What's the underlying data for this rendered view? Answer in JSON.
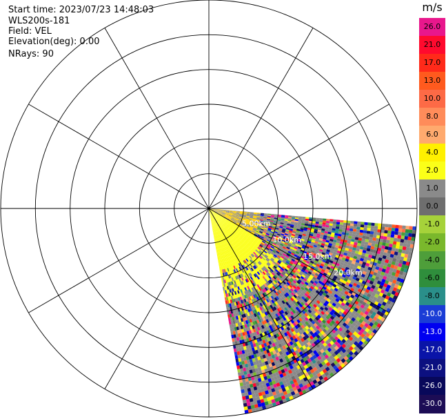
{
  "header": {
    "start_time": "Start time: 2023/07/23 14:48:03",
    "instrument": "WLS200s-181",
    "field": "Field: VEL",
    "elevation": "Elevation(deg): 0.00",
    "nrays": "NRays: 90"
  },
  "colorbar": {
    "unit": "m/s",
    "levels": [
      {
        "label": "26.0",
        "color": "#e8178c"
      },
      {
        "label": "21.0",
        "color": "#ff0a2e"
      },
      {
        "label": "17.0",
        "color": "#ff2a1a"
      },
      {
        "label": "13.0",
        "color": "#ff5a1e"
      },
      {
        "label": "10.0",
        "color": "#fd6a46"
      },
      {
        "label": "8.0",
        "color": "#ff8c5a"
      },
      {
        "label": "6.0",
        "color": "#ffaa6e"
      },
      {
        "label": "4.0",
        "color": "#fff000"
      },
      {
        "label": "2.0",
        "color": "#fbff18"
      },
      {
        "label": "1.0",
        "color": "#8a8a8a"
      },
      {
        "label": "0.0",
        "color": "#6e6e6e"
      },
      {
        "label": "-1.0",
        "color": "#a6d23a"
      },
      {
        "label": "-2.0",
        "color": "#7ab82c"
      },
      {
        "label": "-4.0",
        "color": "#4e9e3a"
      },
      {
        "label": "-6.0",
        "color": "#2f8e3c"
      },
      {
        "label": "-8.0",
        "color": "#2a8f8a"
      },
      {
        "label": "-10.0",
        "color": "#1a3dd6"
      },
      {
        "label": "-13.0",
        "color": "#0000f0"
      },
      {
        "label": "-17.0",
        "color": "#0a14a8"
      },
      {
        "label": "-21.0",
        "color": "#0c1080"
      },
      {
        "label": "-26.0",
        "color": "#08085a"
      },
      {
        "label": "-30.0",
        "color": "#1c0c55"
      }
    ]
  },
  "chart_data": {
    "type": "heatmap",
    "projection": "polar",
    "field": "VEL",
    "units": "m/s",
    "rings": 6,
    "spokes_deg": 30,
    "sector_deg": [
      95,
      170
    ],
    "range_labels": [
      "5.00km",
      "10.0km",
      "15.0km",
      "20.0km"
    ],
    "dominant_near_field": "4.0"
  }
}
